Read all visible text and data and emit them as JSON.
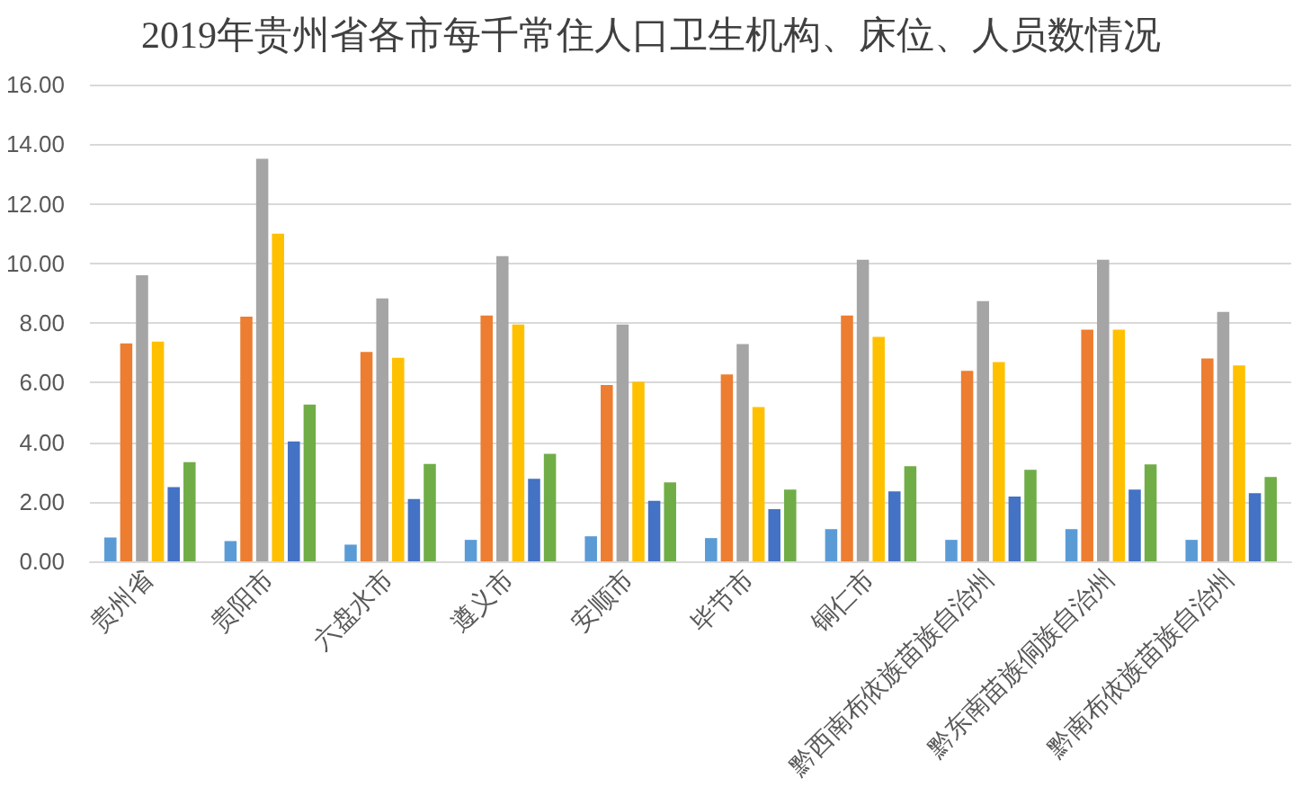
{
  "chart_data": {
    "type": "bar",
    "title": "2019年贵州省各市每千常住人口卫生机构、床位、人员数情况",
    "categories": [
      "贵州省",
      "贵阳市",
      "六盘水市",
      "遵义市",
      "安顺市",
      "毕节市",
      "铜仁市",
      "黔西南布依族苗族自治州",
      "黔东南苗族侗族自治州",
      "黔南布依族苗族自治州"
    ],
    "series": [
      {
        "color": "#5b9bd5",
        "values": [
          0.8,
          0.68,
          0.56,
          0.72,
          0.84,
          0.78,
          1.08,
          0.72,
          1.08,
          0.72
        ]
      },
      {
        "color": "#ed7d31",
        "values": [
          7.31,
          8.21,
          7.03,
          8.25,
          5.92,
          6.27,
          8.25,
          6.39,
          7.77,
          6.81
        ]
      },
      {
        "color": "#a5a5a5",
        "values": [
          9.6,
          13.51,
          8.82,
          10.24,
          7.95,
          7.29,
          10.12,
          8.73,
          10.12,
          8.37
        ]
      },
      {
        "color": "#ffc000",
        "values": [
          7.37,
          11.0,
          6.83,
          7.95,
          6.02,
          5.18,
          7.53,
          6.69,
          7.77,
          6.57
        ]
      },
      {
        "color": "#4472c4",
        "values": [
          2.49,
          4.02,
          2.09,
          2.77,
          2.03,
          1.75,
          2.35,
          2.17,
          2.41,
          2.29
        ]
      },
      {
        "color": "#70ad47",
        "values": [
          3.33,
          5.26,
          3.27,
          3.61,
          2.65,
          2.41,
          3.19,
          3.07,
          3.25,
          2.83
        ]
      }
    ],
    "ylim": [
      0,
      16
    ],
    "yticks": [
      {
        "value": 0,
        "label": "0.00"
      },
      {
        "value": 2,
        "label": "2.00"
      },
      {
        "value": 4,
        "label": "4.00"
      },
      {
        "value": 6,
        "label": "6.00"
      },
      {
        "value": 8,
        "label": "8.00"
      },
      {
        "value": 10,
        "label": "10.00"
      },
      {
        "value": 12,
        "label": "12.00"
      },
      {
        "value": 14,
        "label": "14.00"
      },
      {
        "value": 16,
        "label": "16.00"
      }
    ],
    "grid": "y"
  }
}
